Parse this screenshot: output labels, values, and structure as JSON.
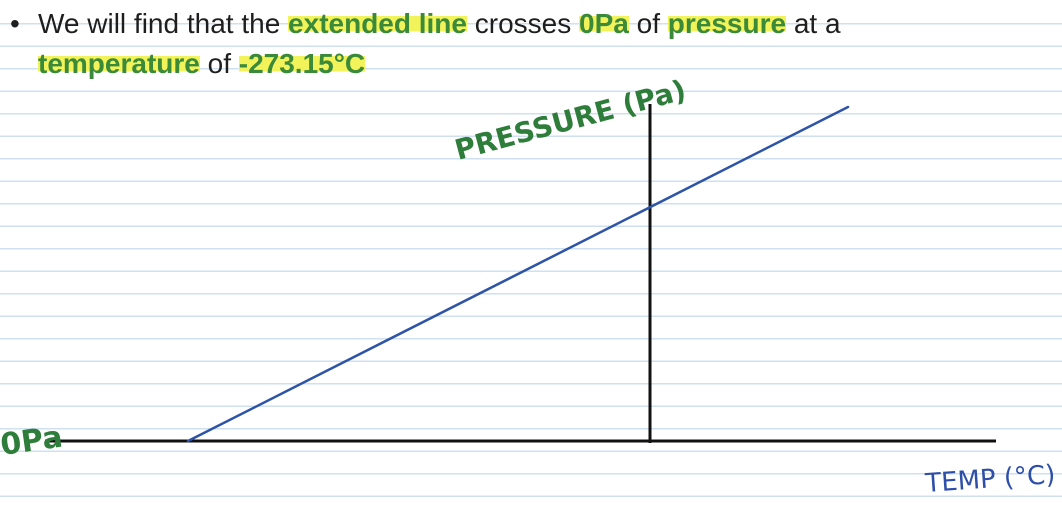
{
  "bullet": {
    "symbol": "•",
    "t1": "We will find that the ",
    "h1": "extended line",
    "t2": " crosses ",
    "h2": "0Pa",
    "t3": " of ",
    "h3": "pressure",
    "t4": " at a",
    "h4": "temperature",
    "t5": " of ",
    "h5": "-273.15°C"
  },
  "diagram": {
    "y_axis_label": "PRESSURE (Pa)",
    "x_axis_label": "TEMP (°C)",
    "origin_label": "0Pa",
    "line_color": "#2e54a8",
    "axis_color": "#111111",
    "label_color": "#2f7d3a"
  }
}
